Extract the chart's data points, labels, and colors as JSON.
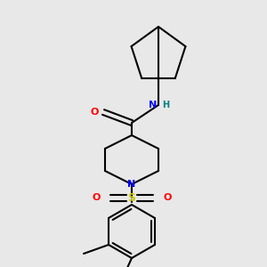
{
  "bg_color": "#e8e8e8",
  "bond_color": "#000000",
  "N_color": "#0000ff",
  "O_color": "#ff0000",
  "S_color": "#cccc00",
  "NH_color": "#0000ff",
  "H_color": "#008080",
  "line_width": 1.5,
  "figsize": [
    3.0,
    3.0
  ],
  "dpi": 100,
  "xlim": [
    0,
    300
  ],
  "ylim": [
    0,
    300
  ]
}
